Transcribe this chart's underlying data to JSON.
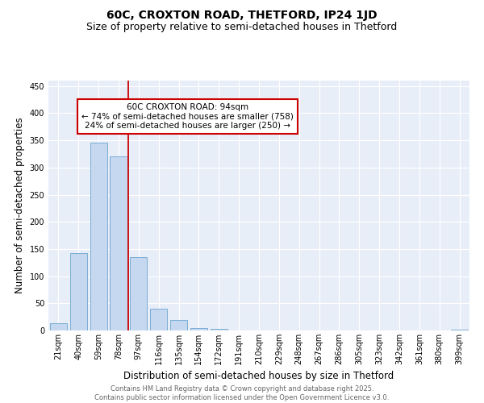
{
  "title1": "60C, CROXTON ROAD, THETFORD, IP24 1JD",
  "title2": "Size of property relative to semi-detached houses in Thetford",
  "xlabel": "Distribution of semi-detached houses by size in Thetford",
  "ylabel": "Number of semi-detached properties",
  "categories": [
    "21sqm",
    "40sqm",
    "59sqm",
    "78sqm",
    "97sqm",
    "116sqm",
    "135sqm",
    "154sqm",
    "172sqm",
    "191sqm",
    "210sqm",
    "229sqm",
    "248sqm",
    "267sqm",
    "286sqm",
    "305sqm",
    "323sqm",
    "342sqm",
    "361sqm",
    "380sqm",
    "399sqm"
  ],
  "values": [
    13,
    143,
    346,
    320,
    135,
    40,
    19,
    5,
    3,
    0,
    0,
    0,
    0,
    0,
    0,
    0,
    0,
    0,
    0,
    0,
    2
  ],
  "bar_color": "#c5d8f0",
  "bar_edge_color": "#7aadd4",
  "vline_color": "#cc0000",
  "annotation_text": "60C CROXTON ROAD: 94sqm\n← 74% of semi-detached houses are smaller (758)\n24% of semi-detached houses are larger (250) →",
  "annotation_box_color": "white",
  "annotation_box_edge_color": "#cc0000",
  "ylim": [
    0,
    460
  ],
  "yticks": [
    0,
    50,
    100,
    150,
    200,
    250,
    300,
    350,
    400,
    450
  ],
  "background_color": "#e8eef8",
  "grid_color": "#ffffff",
  "footer_text": "Contains HM Land Registry data © Crown copyright and database right 2025.\nContains public sector information licensed under the Open Government Licence v3.0.",
  "title_fontsize": 10,
  "subtitle_fontsize": 9,
  "tick_fontsize": 7,
  "ylabel_fontsize": 8.5,
  "xlabel_fontsize": 8.5,
  "annotation_fontsize": 7.5,
  "footer_fontsize": 6
}
